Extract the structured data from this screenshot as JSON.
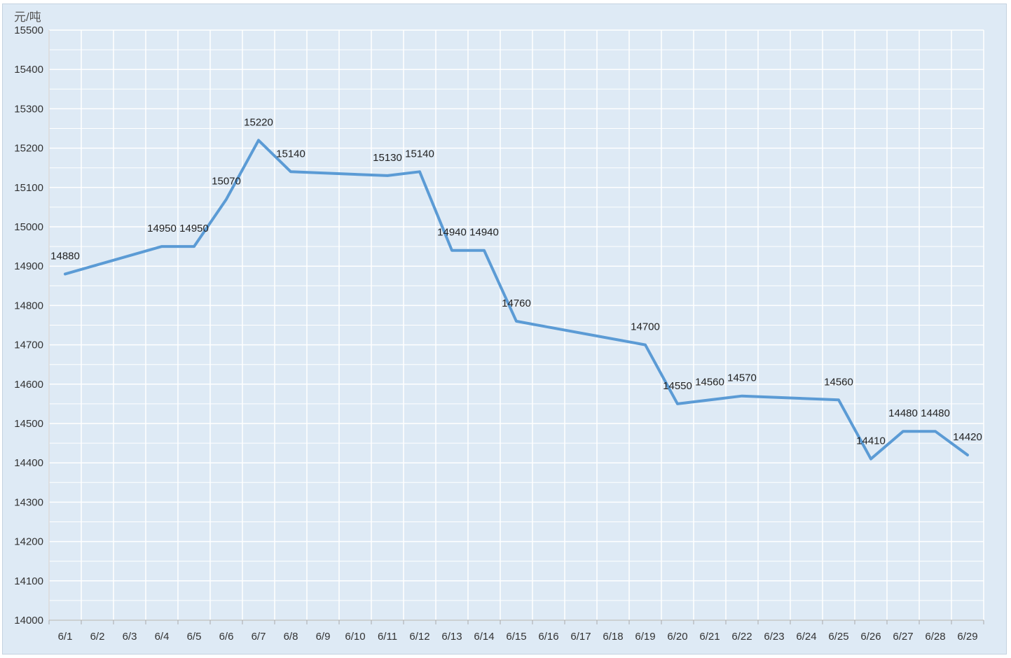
{
  "chart_data": {
    "type": "line",
    "ylabel": "元/吨",
    "title": "",
    "ylim": [
      14000,
      15500
    ],
    "ystep": 100,
    "grid": true,
    "legend": "none",
    "categories": [
      "6/1",
      "6/2",
      "6/3",
      "6/4",
      "6/5",
      "6/6",
      "6/7",
      "6/8",
      "6/9",
      "6/10",
      "6/11",
      "6/12",
      "6/13",
      "6/14",
      "6/15",
      "6/16",
      "6/17",
      "6/18",
      "6/19",
      "6/20",
      "6/21",
      "6/22",
      "6/23",
      "6/24",
      "6/25",
      "6/26",
      "6/27",
      "6/28",
      "6/29"
    ],
    "series": [
      {
        "color": "#5b9bd5",
        "points": [
          {
            "x": "6/1",
            "y": 14880
          },
          {
            "x": "6/4",
            "y": 14950
          },
          {
            "x": "6/5",
            "y": 14950
          },
          {
            "x": "6/6",
            "y": 15070
          },
          {
            "x": "6/7",
            "y": 15220
          },
          {
            "x": "6/8",
            "y": 15140
          },
          {
            "x": "6/11",
            "y": 15130
          },
          {
            "x": "6/12",
            "y": 15140
          },
          {
            "x": "6/13",
            "y": 14940
          },
          {
            "x": "6/14",
            "y": 14940
          },
          {
            "x": "6/15",
            "y": 14760
          },
          {
            "x": "6/19",
            "y": 14700
          },
          {
            "x": "6/20",
            "y": 14550
          },
          {
            "x": "6/22",
            "y": 14570
          },
          {
            "x": "6/25",
            "y": 14560
          },
          {
            "x": "6/26",
            "y": 14410
          },
          {
            "x": "6/27",
            "y": 14480
          },
          {
            "x": "6/28",
            "y": 14480
          },
          {
            "x": "6/29",
            "y": 14420
          }
        ],
        "extra_labels": [
          {
            "x": "6/21",
            "text": "14560"
          }
        ]
      }
    ]
  },
  "colors": {
    "background": "#deeaf5",
    "grid": "#ffffff",
    "line": "#5b9bd5",
    "text": "#333333"
  }
}
